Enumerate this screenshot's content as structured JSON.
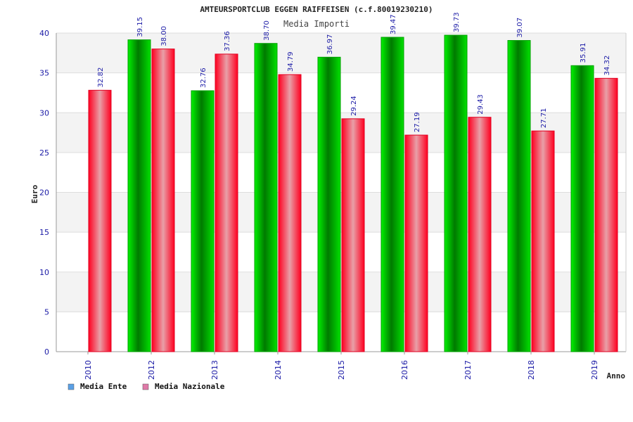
{
  "chart_data": {
    "type": "bar",
    "title": "AMTEURSPORTCLUB EGGEN RAIFFEISEN (c.f.80019230210)",
    "subtitle": "Media Importi",
    "xlabel": "Anno",
    "ylabel": "Euro",
    "ylim": [
      0,
      40
    ],
    "yticks": [
      0,
      5,
      10,
      15,
      20,
      25,
      30,
      35,
      40
    ],
    "grid": true,
    "legend_position": "bottom-left",
    "categories": [
      "2010",
      "2012",
      "2013",
      "2014",
      "2015",
      "2016",
      "2017",
      "2018",
      "2019"
    ],
    "series": [
      {
        "name": "Media Ente",
        "color": "#00c000",
        "legend_color": "#5aa0e6",
        "values": [
          null,
          39.15,
          32.76,
          38.7,
          36.97,
          39.47,
          39.73,
          39.07,
          35.91
        ],
        "labels": [
          "",
          "39.15",
          "32.76",
          "38.70",
          "36.97",
          "39.47",
          "39.73",
          "39.07",
          "35.91"
        ]
      },
      {
        "name": "Media Nazionale",
        "color": "#ff1030",
        "legend_color": "#e07aa8",
        "values": [
          32.82,
          38.0,
          37.36,
          34.79,
          29.24,
          27.19,
          29.43,
          27.71,
          34.32
        ],
        "labels": [
          "32.82",
          "38.00",
          "37.36",
          "34.79",
          "29.24",
          "27.19",
          "29.43",
          "27.71",
          "34.32"
        ]
      }
    ]
  }
}
